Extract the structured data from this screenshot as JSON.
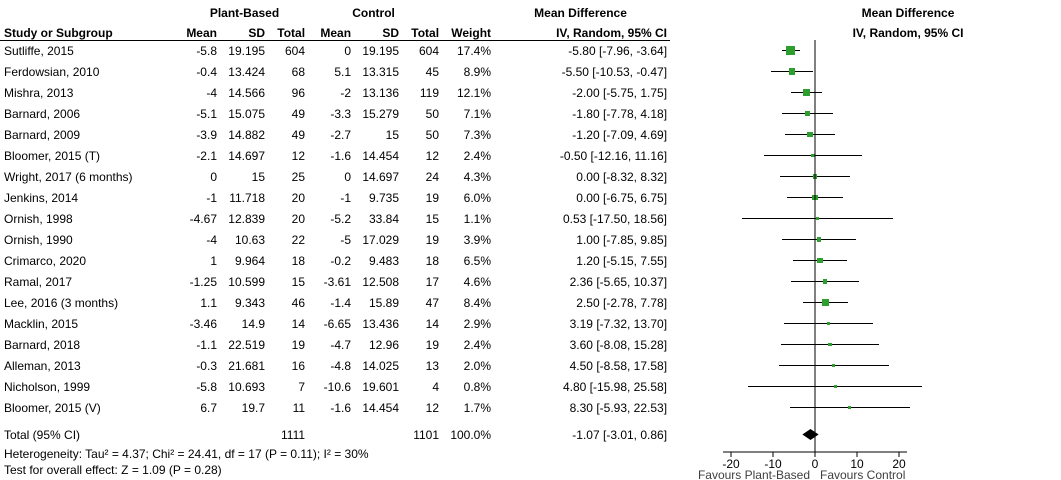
{
  "colors": {
    "marker_green": "#2E9E2E",
    "line_black": "#000000"
  },
  "header": {
    "study": "Study or Subgroup",
    "group_plant": "Plant-Based",
    "group_control": "Control",
    "mean": "Mean",
    "sd": "SD",
    "total": "Total",
    "weight": "Weight",
    "md_title": "Mean Difference",
    "md_sub": "IV, Random, 95% CI"
  },
  "chart_data": {
    "type": "forest",
    "effect_measure": "Mean Difference",
    "model": "IV, Random, 95% CI",
    "axis": {
      "ticks": [
        -20,
        -10,
        0,
        10,
        20
      ],
      "tick_labels": [
        "-20",
        "-10",
        "0",
        "10",
        "20"
      ],
      "favours_left": "Favours Plant-Based",
      "favours_right": "Favours Control"
    },
    "rows": [
      {
        "study": "Sutliffe, 2015",
        "pb_mean": "-5.8",
        "pb_sd": "19.195",
        "pb_total": "604",
        "c_mean": "0",
        "c_sd": "19.195",
        "c_total": "604",
        "weight": "17.4%",
        "ci_text": "-5.80 [-7.96, -3.64]",
        "md": -5.8,
        "lo": -7.96,
        "hi": -3.64,
        "w": 17.4
      },
      {
        "study": "Ferdowsian, 2010",
        "pb_mean": "-0.4",
        "pb_sd": "13.424",
        "pb_total": "68",
        "c_mean": "5.1",
        "c_sd": "13.315",
        "c_total": "45",
        "weight": "8.9%",
        "ci_text": "-5.50 [-10.53, -0.47]",
        "md": -5.5,
        "lo": -10.53,
        "hi": -0.47,
        "w": 8.9
      },
      {
        "study": "Mishra, 2013",
        "pb_mean": "-4",
        "pb_sd": "14.566",
        "pb_total": "96",
        "c_mean": "-2",
        "c_sd": "13.136",
        "c_total": "119",
        "weight": "12.1%",
        "ci_text": "-2.00 [-5.75, 1.75]",
        "md": -2,
        "lo": -5.75,
        "hi": 1.75,
        "w": 12.1
      },
      {
        "study": "Barnard, 2006",
        "pb_mean": "-5.1",
        "pb_sd": "15.075",
        "pb_total": "49",
        "c_mean": "-3.3",
        "c_sd": "15.279",
        "c_total": "50",
        "weight": "7.1%",
        "ci_text": "-1.80 [-7.78, 4.18]",
        "md": -1.8,
        "lo": -7.78,
        "hi": 4.18,
        "w": 7.1
      },
      {
        "study": "Barnard, 2009",
        "pb_mean": "-3.9",
        "pb_sd": "14.882",
        "pb_total": "49",
        "c_mean": "-2.7",
        "c_sd": "15",
        "c_total": "50",
        "weight": "7.3%",
        "ci_text": "-1.20 [-7.09, 4.69]",
        "md": -1.2,
        "lo": -7.09,
        "hi": 4.69,
        "w": 7.3
      },
      {
        "study": "Bloomer, 2015 (T)",
        "pb_mean": "-2.1",
        "pb_sd": "14.697",
        "pb_total": "12",
        "c_mean": "-1.6",
        "c_sd": "14.454",
        "c_total": "12",
        "weight": "2.4%",
        "ci_text": "-0.50 [-12.16, 11.16]",
        "md": -0.5,
        "lo": -12.16,
        "hi": 11.16,
        "w": 2.4
      },
      {
        "study": "Wright, 2017 (6 months)",
        "pb_mean": "0",
        "pb_sd": "15",
        "pb_total": "25",
        "c_mean": "0",
        "c_sd": "14.697",
        "c_total": "24",
        "weight": "4.3%",
        "ci_text": "0.00 [-8.32, 8.32]",
        "md": 0,
        "lo": -8.32,
        "hi": 8.32,
        "w": 4.3
      },
      {
        "study": "Jenkins, 2014",
        "pb_mean": "-1",
        "pb_sd": "11.718",
        "pb_total": "20",
        "c_mean": "-1",
        "c_sd": "9.735",
        "c_total": "19",
        "weight": "6.0%",
        "ci_text": "0.00 [-6.75, 6.75]",
        "md": 0,
        "lo": -6.75,
        "hi": 6.75,
        "w": 6.0
      },
      {
        "study": "Ornish, 1998",
        "pb_mean": "-4.67",
        "pb_sd": "12.839",
        "pb_total": "20",
        "c_mean": "-5.2",
        "c_sd": "33.84",
        "c_total": "15",
        "weight": "1.1%",
        "ci_text": "0.53 [-17.50, 18.56]",
        "md": 0.53,
        "lo": -17.5,
        "hi": 18.56,
        "w": 1.1
      },
      {
        "study": "Ornish, 1990",
        "pb_mean": "-4",
        "pb_sd": "10.63",
        "pb_total": "22",
        "c_mean": "-5",
        "c_sd": "17.029",
        "c_total": "19",
        "weight": "3.9%",
        "ci_text": "1.00 [-7.85, 9.85]",
        "md": 1,
        "lo": -7.85,
        "hi": 9.85,
        "w": 3.9
      },
      {
        "study": "Crimarco, 2020",
        "pb_mean": "1",
        "pb_sd": "9.964",
        "pb_total": "18",
        "c_mean": "-0.2",
        "c_sd": "9.483",
        "c_total": "18",
        "weight": "6.5%",
        "ci_text": "1.20 [-5.15, 7.55]",
        "md": 1.2,
        "lo": -5.15,
        "hi": 7.55,
        "w": 6.5
      },
      {
        "study": "Ramal, 2017",
        "pb_mean": "-1.25",
        "pb_sd": "10.599",
        "pb_total": "15",
        "c_mean": "-3.61",
        "c_sd": "12.508",
        "c_total": "17",
        "weight": "4.6%",
        "ci_text": "2.36 [-5.65, 10.37]",
        "md": 2.36,
        "lo": -5.65,
        "hi": 10.37,
        "w": 4.6
      },
      {
        "study": "Lee, 2016 (3 months)",
        "pb_mean": "1.1",
        "pb_sd": "9.343",
        "pb_total": "46",
        "c_mean": "-1.4",
        "c_sd": "15.89",
        "c_total": "47",
        "weight": "8.4%",
        "ci_text": "2.50 [-2.78, 7.78]",
        "md": 2.5,
        "lo": -2.78,
        "hi": 7.78,
        "w": 8.4
      },
      {
        "study": "Macklin, 2015",
        "pb_mean": "-3.46",
        "pb_sd": "14.9",
        "pb_total": "14",
        "c_mean": "-6.65",
        "c_sd": "13.436",
        "c_total": "14",
        "weight": "2.9%",
        "ci_text": "3.19 [-7.32, 13.70]",
        "md": 3.19,
        "lo": -7.32,
        "hi": 13.7,
        "w": 2.9
      },
      {
        "study": "Barnard, 2018",
        "pb_mean": "-1.1",
        "pb_sd": "22.519",
        "pb_total": "19",
        "c_mean": "-4.7",
        "c_sd": "12.96",
        "c_total": "19",
        "weight": "2.4%",
        "ci_text": "3.60 [-8.08, 15.28]",
        "md": 3.6,
        "lo": -8.08,
        "hi": 15.28,
        "w": 2.4
      },
      {
        "study": "Alleman, 2013",
        "pb_mean": "-0.3",
        "pb_sd": "21.681",
        "pb_total": "16",
        "c_mean": "-4.8",
        "c_sd": "14.025",
        "c_total": "13",
        "weight": "2.0%",
        "ci_text": "4.50 [-8.58, 17.58]",
        "md": 4.5,
        "lo": -8.58,
        "hi": 17.58,
        "w": 2.0
      },
      {
        "study": "Nicholson, 1999",
        "pb_mean": "-5.8",
        "pb_sd": "10.693",
        "pb_total": "7",
        "c_mean": "-10.6",
        "c_sd": "19.601",
        "c_total": "4",
        "weight": "0.8%",
        "ci_text": "4.80 [-15.98, 25.58]",
        "md": 4.8,
        "lo": -15.98,
        "hi": 25.58,
        "w": 0.8
      },
      {
        "study": "Bloomer, 2015 (V)",
        "pb_mean": "6.7",
        "pb_sd": "19.7",
        "pb_total": "11",
        "c_mean": "-1.6",
        "c_sd": "14.454",
        "c_total": "12",
        "weight": "1.7%",
        "ci_text": "8.30 [-5.93, 22.53]",
        "md": 8.3,
        "lo": -5.93,
        "hi": 22.53,
        "w": 1.7
      }
    ],
    "total": {
      "label": "Total (95% CI)",
      "pb_total": "1111",
      "c_total": "1101",
      "weight": "100.0%",
      "ci_text": "-1.07 [-3.01, 0.86]",
      "md": -1.07,
      "lo": -3.01,
      "hi": 0.86
    },
    "footnotes": {
      "heterogeneity": "Heterogeneity: Tau² = 4.37; Chi² = 24.41, df = 17 (P = 0.11); I² = 30%",
      "overall_effect": "Test for overall effect: Z = 1.09 (P = 0.28)"
    }
  }
}
